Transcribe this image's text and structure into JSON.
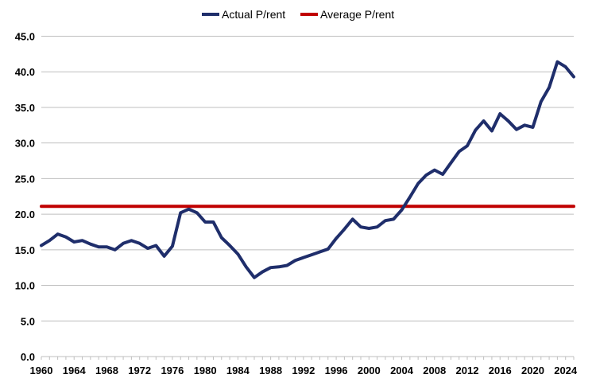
{
  "chart_data": {
    "type": "line",
    "title": "",
    "xlabel": "",
    "ylabel": "",
    "xlim": [
      1960,
      2025
    ],
    "ylim": [
      0,
      45
    ],
    "x_ticks": [
      1960,
      1964,
      1968,
      1972,
      1976,
      1980,
      1984,
      1988,
      1992,
      1996,
      2000,
      2004,
      2008,
      2012,
      2016,
      2020,
      2024
    ],
    "x_tick_labels": [
      "1960",
      "1964",
      "1968",
      "1972",
      "1976",
      "1980",
      "1984",
      "1988",
      "1992",
      "1996",
      "2000",
      "2004",
      "2008",
      "2012",
      "2016",
      "2020",
      "2024"
    ],
    "y_ticks": [
      0,
      5,
      10,
      15,
      20,
      25,
      30,
      35,
      40,
      45
    ],
    "y_tick_labels": [
      "0.0",
      "5.0",
      "10.0",
      "15.0",
      "20.0",
      "25.0",
      "30.0",
      "35.0",
      "40.0",
      "45.0"
    ],
    "grid": "horizontal",
    "legend_position": "top-center",
    "series": [
      {
        "name": "Actual P/rent",
        "color": "#1f2e6b",
        "x": [
          1960,
          1961,
          1962,
          1963,
          1964,
          1965,
          1966,
          1967,
          1968,
          1969,
          1970,
          1971,
          1972,
          1973,
          1974,
          1975,
          1976,
          1977,
          1978,
          1979,
          1980,
          1981,
          1982,
          1983,
          1984,
          1985,
          1986,
          1987,
          1988,
          1989,
          1990,
          1991,
          1992,
          1993,
          1994,
          1995,
          1996,
          1997,
          1998,
          1999,
          2000,
          2001,
          2002,
          2003,
          2004,
          2005,
          2006,
          2007,
          2008,
          2009,
          2010,
          2011,
          2012,
          2013,
          2014,
          2015,
          2016,
          2017,
          2018,
          2019,
          2020,
          2021,
          2022,
          2023,
          2024,
          2025
        ],
        "values": [
          15.6,
          16.3,
          17.2,
          16.8,
          16.1,
          16.3,
          15.8,
          15.4,
          15.4,
          15.0,
          15.9,
          16.3,
          15.9,
          15.2,
          15.6,
          14.1,
          15.5,
          20.2,
          20.7,
          20.2,
          18.9,
          18.9,
          16.7,
          15.6,
          14.4,
          12.6,
          11.1,
          11.9,
          12.5,
          12.6,
          12.8,
          13.5,
          13.9,
          14.3,
          14.7,
          15.1,
          16.6,
          17.9,
          19.3,
          18.2,
          18.0,
          18.2,
          19.1,
          19.3,
          20.6,
          22.4,
          24.3,
          25.5,
          26.2,
          25.6,
          27.2,
          28.8,
          29.6,
          31.8,
          33.1,
          31.7,
          34.1,
          33.1,
          31.9,
          32.5,
          32.2,
          35.8,
          37.8,
          41.4,
          40.7,
          39.3
        ]
      },
      {
        "name": "Average P/rent",
        "color": "#c00000",
        "x": [
          1960,
          2025
        ],
        "values": [
          21.1,
          21.1
        ]
      }
    ]
  }
}
